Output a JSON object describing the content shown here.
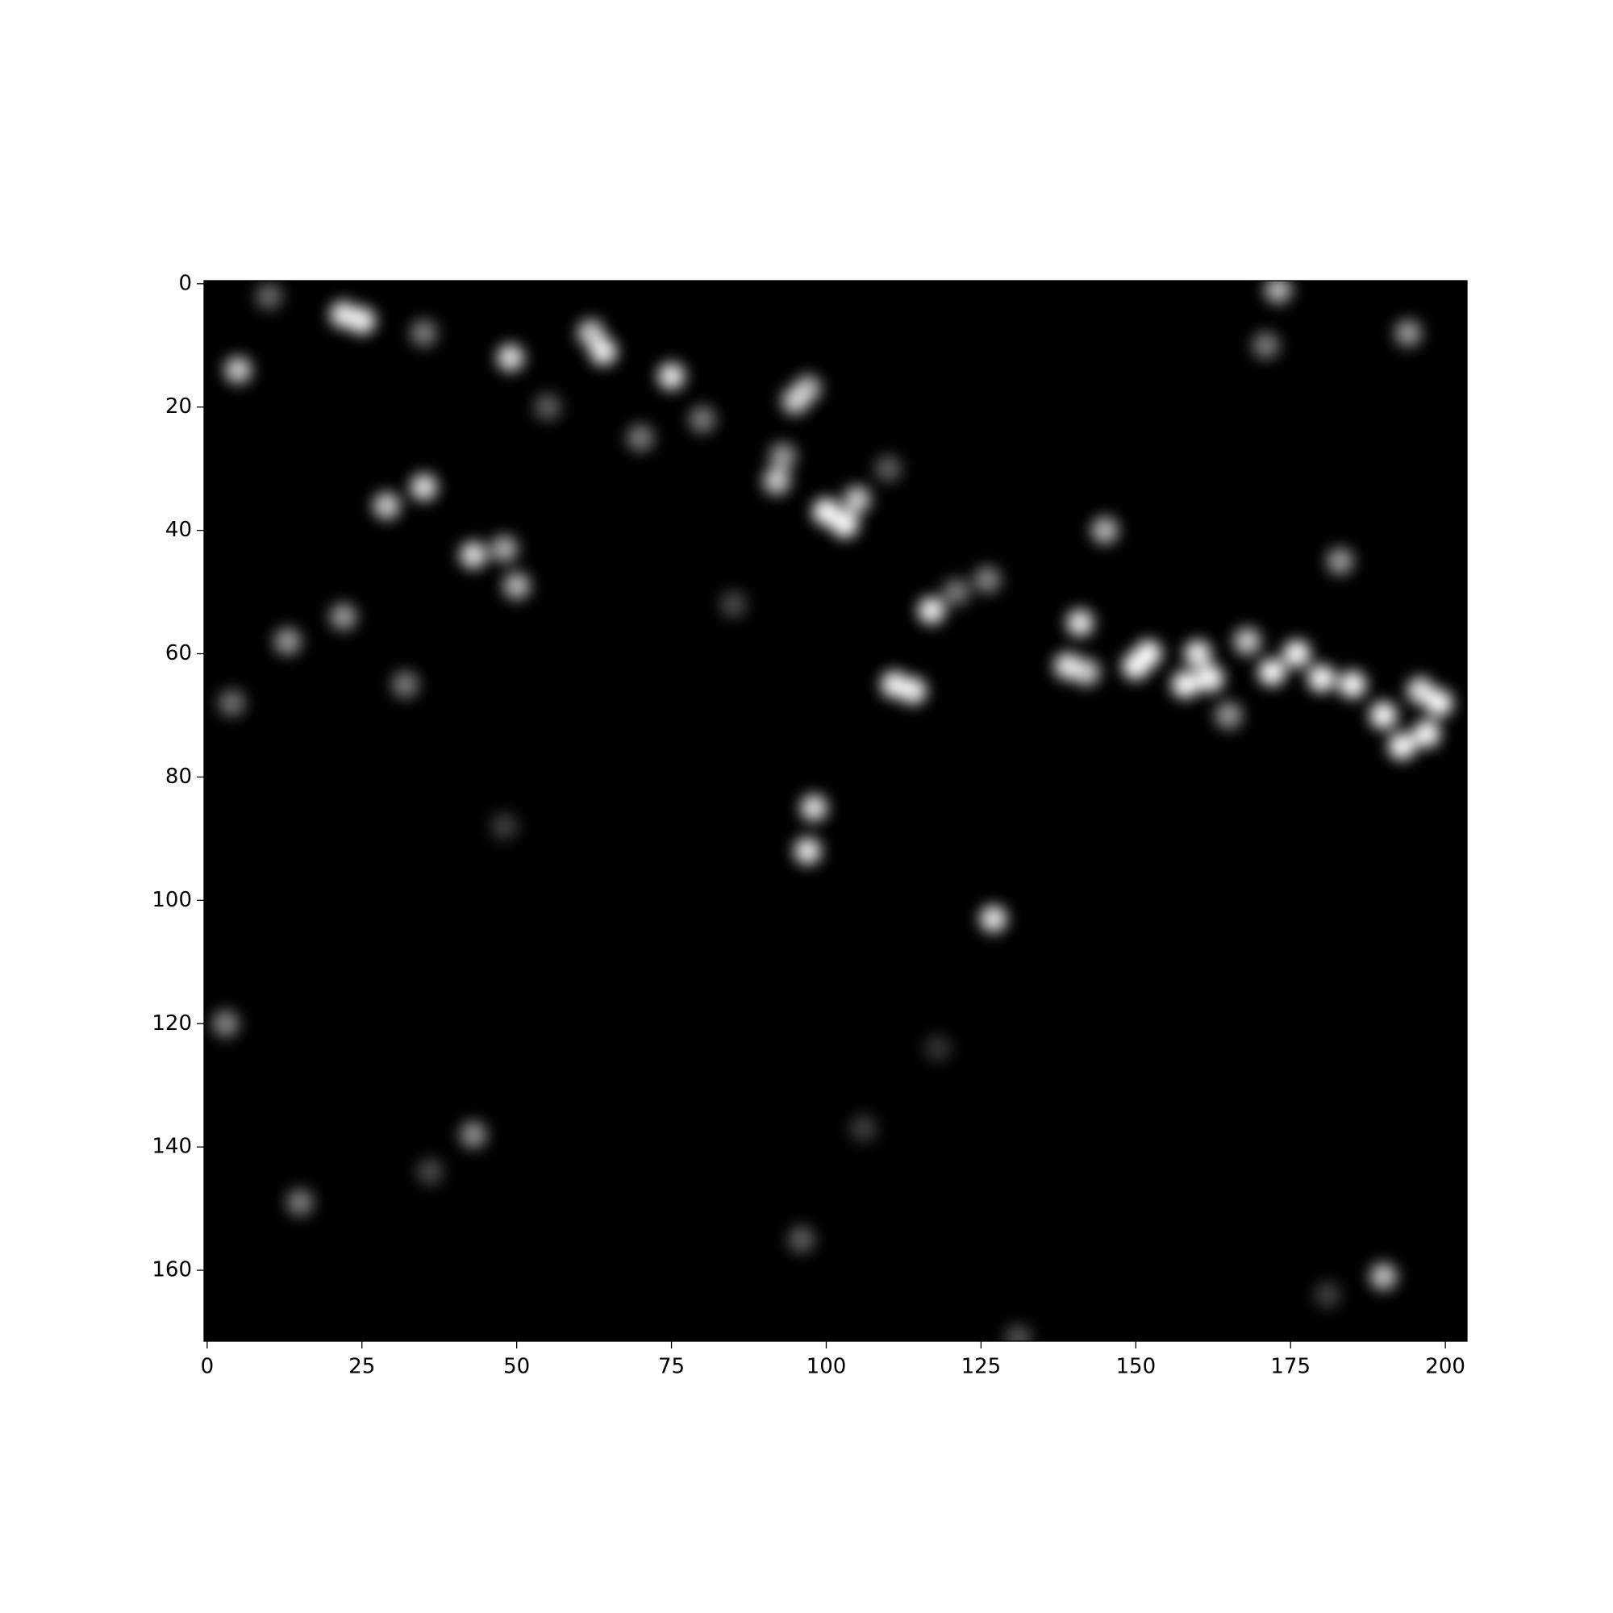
{
  "chart_data": {
    "type": "image",
    "x": [
      5,
      22,
      25,
      35,
      49,
      62,
      64,
      75,
      95,
      97,
      93,
      92,
      100,
      103,
      105,
      35,
      29,
      43,
      48,
      50,
      22,
      13,
      32,
      4,
      117,
      121,
      126,
      111,
      114,
      139,
      142,
      141,
      150,
      152,
      158,
      162,
      160,
      168,
      172,
      176,
      180,
      185,
      190,
      193,
      197,
      199,
      196,
      165,
      145,
      183,
      173,
      171,
      194,
      98,
      97,
      127,
      3,
      43,
      15,
      190,
      96,
      36,
      106,
      181,
      48,
      85,
      118,
      131,
      80,
      70,
      55,
      10,
      110
    ],
    "y": [
      14,
      5,
      6,
      8,
      12,
      8,
      11,
      15,
      19,
      17,
      28,
      32,
      37,
      39,
      35,
      33,
      36,
      44,
      43,
      49,
      54,
      58,
      65,
      68,
      53,
      50,
      48,
      65,
      66,
      62,
      63,
      55,
      62,
      60,
      65,
      64,
      60,
      58,
      63,
      60,
      64,
      65,
      70,
      75,
      73,
      68,
      66,
      70,
      40,
      45,
      1,
      10,
      8,
      85,
      92,
      103,
      120,
      138,
      149,
      161,
      155,
      144,
      137,
      164,
      88,
      52,
      124,
      171,
      22,
      25,
      20,
      2,
      30
    ],
    "values": [
      200,
      230,
      240,
      120,
      220,
      200,
      240,
      230,
      200,
      180,
      150,
      200,
      255,
      255,
      200,
      220,
      200,
      220,
      170,
      180,
      150,
      150,
      120,
      110,
      240,
      120,
      130,
      240,
      240,
      230,
      200,
      230,
      255,
      255,
      255,
      255,
      240,
      200,
      255,
      255,
      255,
      255,
      255,
      255,
      255,
      255,
      230,
      150,
      180,
      150,
      180,
      120,
      150,
      220,
      230,
      230,
      130,
      140,
      120,
      190,
      90,
      70,
      60,
      60,
      60,
      70,
      50,
      80,
      120,
      120,
      90,
      100,
      90
    ],
    "color": "#ffffff",
    "background": "#000000",
    "xlim": [
      -0.5,
      203.5
    ],
    "ylim": [
      171.5,
      -0.5
    ],
    "xticks": [
      0,
      25,
      50,
      75,
      100,
      125,
      150,
      175,
      200
    ],
    "yticks": [
      0,
      20,
      40,
      60,
      80,
      100,
      120,
      140,
      160
    ]
  }
}
